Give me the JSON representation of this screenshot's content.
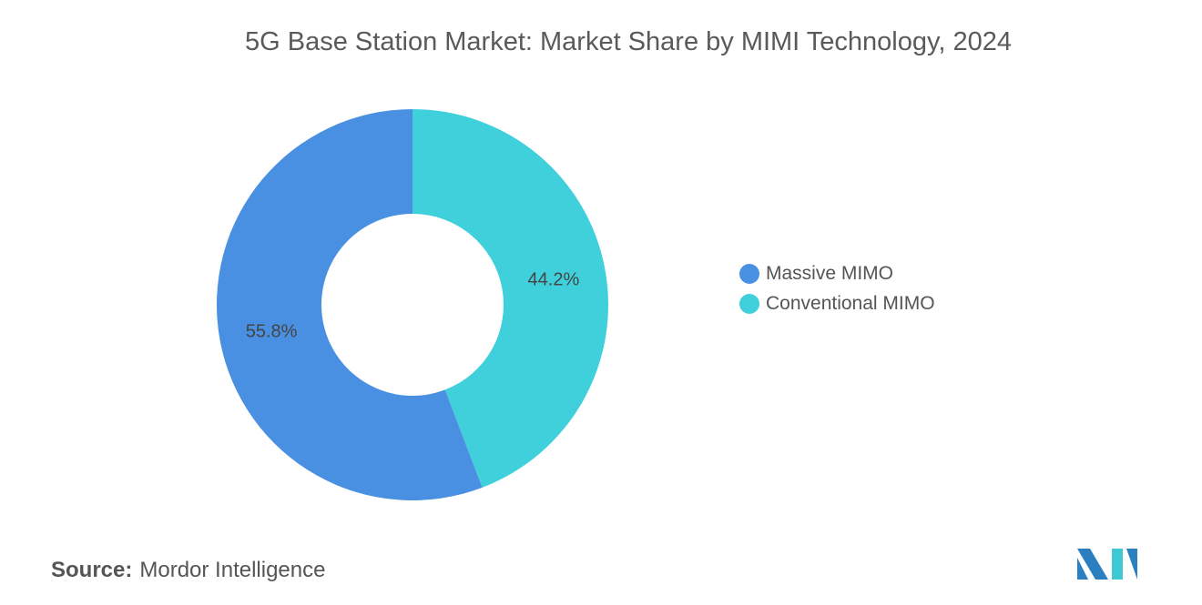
{
  "chart_data": {
    "type": "pie",
    "variant": "donut",
    "title": "5G Base Station Market: Market Share by MIMI Technology, 2024",
    "categories": [
      "Massive MIMO",
      "Conventional MIMO"
    ],
    "values": [
      55.8,
      44.2
    ],
    "labels": [
      "55.8%",
      "44.2%"
    ],
    "colors": [
      "#4a90e2",
      "#3fd0db"
    ],
    "legend_position": "right"
  },
  "source": {
    "label": "Source:",
    "value": "Mordor Intelligence"
  },
  "logo": {
    "colors": [
      "#2a7fc0",
      "#3fc9d4"
    ]
  }
}
